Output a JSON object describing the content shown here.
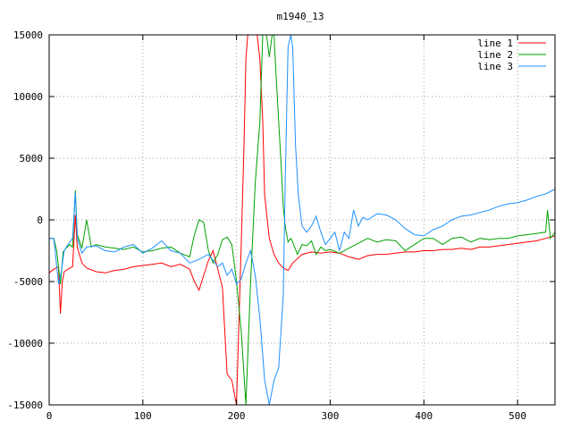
{
  "chart_data": {
    "type": "line",
    "title": "m1940_13",
    "xlabel": "",
    "ylabel": "",
    "xlim": [
      0,
      540
    ],
    "ylim": [
      -15000,
      15000
    ],
    "x_ticks": [
      0,
      100,
      200,
      300,
      400,
      500
    ],
    "y_ticks": [
      -15000,
      -10000,
      -5000,
      0,
      5000,
      10000,
      15000
    ],
    "grid": true,
    "legend_position": "top-right",
    "series": [
      {
        "name": "line 1",
        "color": "#ff0000",
        "x": [
          0,
          5,
          10,
          12,
          14,
          16,
          20,
          25,
          28,
          30,
          35,
          40,
          50,
          60,
          70,
          80,
          90,
          100,
          110,
          120,
          130,
          140,
          150,
          155,
          160,
          165,
          170,
          175,
          180,
          185,
          190,
          195,
          200,
          205,
          208,
          210,
          212,
          215,
          218,
          220,
          222,
          225,
          228,
          230,
          235,
          240,
          245,
          250,
          255,
          260,
          270,
          280,
          290,
          300,
          310,
          320,
          330,
          340,
          350,
          360,
          370,
          380,
          390,
          400,
          410,
          420,
          430,
          440,
          450,
          460,
          470,
          480,
          490,
          500,
          510,
          520,
          530,
          540
        ],
        "y": [
          -4300,
          -4000,
          -3800,
          -7600,
          -5000,
          -4200,
          -4000,
          -3800,
          400,
          -2200,
          -3500,
          -3900,
          -4200,
          -4300,
          -4100,
          -4000,
          -3800,
          -3700,
          -3600,
          -3500,
          -3800,
          -3600,
          -4000,
          -5000,
          -5700,
          -4500,
          -3300,
          -2500,
          -4000,
          -5500,
          -12500,
          -13000,
          -15000,
          -2000,
          6000,
          13000,
          15000,
          15000,
          15000,
          15000,
          15000,
          13000,
          8000,
          2000,
          -1500,
          -2800,
          -3500,
          -3900,
          -4100,
          -3500,
          -2800,
          -2600,
          -2700,
          -2600,
          -2700,
          -3000,
          -3200,
          -2900,
          -2800,
          -2800,
          -2700,
          -2600,
          -2600,
          -2500,
          -2500,
          -2400,
          -2400,
          -2300,
          -2400,
          -2200,
          -2200,
          -2100,
          -2000,
          -1900,
          -1800,
          -1700,
          -1500,
          -1300
        ]
      },
      {
        "name": "line 2",
        "color": "#00a000",
        "x": [
          0,
          5,
          8,
          12,
          15,
          18,
          22,
          25,
          28,
          30,
          35,
          40,
          45,
          50,
          60,
          70,
          80,
          90,
          100,
          110,
          120,
          130,
          140,
          150,
          155,
          160,
          165,
          170,
          175,
          180,
          185,
          190,
          195,
          200,
          205,
          210,
          215,
          220,
          225,
          228,
          232,
          235,
          238,
          240,
          242,
          245,
          248,
          250,
          252,
          255,
          258,
          260,
          265,
          270,
          275,
          280,
          285,
          290,
          295,
          300,
          310,
          320,
          330,
          340,
          350,
          360,
          370,
          380,
          390,
          400,
          410,
          420,
          430,
          440,
          450,
          460,
          470,
          480,
          490,
          500,
          510,
          520,
          530,
          532,
          535,
          540
        ],
        "y": [
          -1500,
          -1500,
          -2500,
          -5200,
          -2600,
          -2300,
          -2000,
          -2200,
          2400,
          -1200,
          -2300,
          0,
          -2200,
          -2000,
          -2200,
          -2300,
          -2400,
          -2200,
          -2600,
          -2500,
          -2300,
          -2200,
          -2700,
          -3000,
          -1200,
          0,
          -200,
          -2500,
          -3500,
          -2800,
          -1600,
          -1400,
          -2000,
          -5000,
          -9000,
          -15000,
          -5000,
          3000,
          8000,
          15000,
          15000,
          13200,
          15000,
          15000,
          12000,
          8000,
          4000,
          1000,
          -500,
          -1800,
          -1500,
          -1800,
          -2800,
          -2000,
          -2100,
          -1700,
          -2800,
          -2200,
          -2500,
          -2400,
          -2700,
          -2300,
          -1900,
          -1500,
          -1800,
          -1600,
          -1700,
          -2500,
          -2000,
          -1500,
          -1500,
          -2000,
          -1500,
          -1400,
          -1800,
          -1500,
          -1600,
          -1500,
          -1500,
          -1300,
          -1200,
          -1100,
          -1000,
          800,
          -1500,
          -1000
        ]
      },
      {
        "name": "line 3",
        "color": "#1e90ff",
        "x": [
          0,
          5,
          10,
          13,
          16,
          20,
          25,
          28,
          30,
          35,
          40,
          50,
          60,
          70,
          80,
          90,
          100,
          110,
          120,
          130,
          140,
          150,
          160,
          170,
          180,
          185,
          190,
          195,
          200,
          205,
          210,
          215,
          220,
          225,
          230,
          235,
          240,
          245,
          250,
          252,
          255,
          258,
          260,
          263,
          266,
          270,
          275,
          280,
          285,
          290,
          295,
          300,
          305,
          310,
          315,
          320,
          325,
          330,
          335,
          340,
          350,
          360,
          370,
          380,
          390,
          400,
          410,
          420,
          430,
          440,
          450,
          460,
          470,
          480,
          490,
          500,
          510,
          520,
          530,
          540
        ],
        "y": [
          -1500,
          -1500,
          -5200,
          -4200,
          -2500,
          -2000,
          -1500,
          2200,
          -1500,
          -2700,
          -2200,
          -2100,
          -2500,
          -2600,
          -2200,
          -2000,
          -2700,
          -2300,
          -1700,
          -2500,
          -2700,
          -3500,
          -3200,
          -2800,
          -3800,
          -3500,
          -4500,
          -4000,
          -5200,
          -4800,
          -3500,
          -2500,
          -4500,
          -8000,
          -13000,
          -15000,
          -13000,
          -12000,
          -6000,
          3000,
          14000,
          15000,
          14000,
          6000,
          2000,
          -500,
          -1000,
          -500,
          300,
          -1000,
          -2000,
          -1500,
          -1000,
          -2500,
          -1000,
          -1500,
          800,
          -500,
          200,
          0,
          500,
          400,
          0,
          -700,
          -1200,
          -1300,
          -800,
          -500,
          0,
          300,
          400,
          600,
          800,
          1100,
          1300,
          1400,
          1600,
          1900,
          2100,
          2500
        ]
      }
    ]
  }
}
